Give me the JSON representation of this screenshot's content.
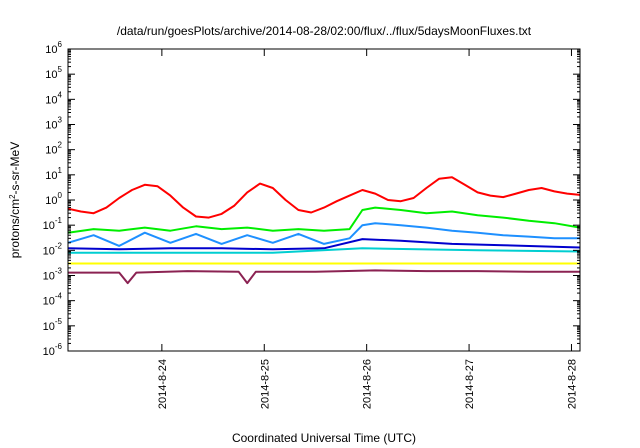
{
  "chart_data": {
    "type": "line",
    "title": "/data/run/goesPlots/archive/2014-08-28/02:00/flux/../flux/5daysMoonFluxes.txt",
    "xlabel": "Coordinated Universal Time (UTC)",
    "ylabel": {
      "prefix": "protons/cm",
      "superscript": "2",
      "suffix": "-s-sr-MeV"
    },
    "y_scale": "log",
    "ylim": [
      1e-06,
      1000000.0
    ],
    "y_ticks": [
      {
        "value": 1e-06,
        "base": "10",
        "exp": "-6"
      },
      {
        "value": 1e-05,
        "base": "10",
        "exp": "-5"
      },
      {
        "value": 0.0001,
        "base": "10",
        "exp": "-4"
      },
      {
        "value": 0.001,
        "base": "10",
        "exp": "-3"
      },
      {
        "value": 0.01,
        "base": "10",
        "exp": "-2"
      },
      {
        "value": 0.1,
        "base": "10",
        "exp": "-1"
      },
      {
        "value": 1,
        "base": "10",
        "exp": "0"
      },
      {
        "value": 10.0,
        "base": "10",
        "exp": "1"
      },
      {
        "value": 100.0,
        "base": "10",
        "exp": "2"
      },
      {
        "value": 1000.0,
        "base": "10",
        "exp": "3"
      },
      {
        "value": 10000.0,
        "base": "10",
        "exp": "4"
      },
      {
        "value": 100000.0,
        "base": "10",
        "exp": "5"
      },
      {
        "value": 1000000.0,
        "base": "10",
        "exp": "6"
      }
    ],
    "xlim": [
      "2014-08-23 02:00",
      "2014-08-28 02:00"
    ],
    "x_ticks": [
      "2014-8-24",
      "2014-8-25",
      "2014-8-26",
      "2014-8-27",
      "2014-8-28"
    ],
    "legend": "none",
    "grid": false,
    "series": [
      {
        "color": "#ff0000",
        "points": [
          [
            "2014-08-23 02:00",
            0.45
          ],
          [
            "2014-08-23 05:00",
            0.35
          ],
          [
            "2014-08-23 08:00",
            0.3
          ],
          [
            "2014-08-23 11:00",
            0.5
          ],
          [
            "2014-08-23 14:00",
            1.2
          ],
          [
            "2014-08-23 17:00",
            2.5
          ],
          [
            "2014-08-23 20:00",
            4.0
          ],
          [
            "2014-08-23 23:00",
            3.5
          ],
          [
            "2014-08-24 02:00",
            1.5
          ],
          [
            "2014-08-24 05:00",
            0.5
          ],
          [
            "2014-08-24 08:00",
            0.22
          ],
          [
            "2014-08-24 11:00",
            0.2
          ],
          [
            "2014-08-24 14:00",
            0.28
          ],
          [
            "2014-08-24 17:00",
            0.6
          ],
          [
            "2014-08-24 20:00",
            2.0
          ],
          [
            "2014-08-24 23:00",
            4.5
          ],
          [
            "2014-08-25 02:00",
            3.0
          ],
          [
            "2014-08-25 05:00",
            1.0
          ],
          [
            "2014-08-25 08:00",
            0.4
          ],
          [
            "2014-08-25 11:00",
            0.32
          ],
          [
            "2014-08-25 14:00",
            0.5
          ],
          [
            "2014-08-25 17:00",
            0.9
          ],
          [
            "2014-08-25 20:00",
            1.5
          ],
          [
            "2014-08-25 23:00",
            2.5
          ],
          [
            "2014-08-26 02:00",
            1.8
          ],
          [
            "2014-08-26 05:00",
            1.0
          ],
          [
            "2014-08-26 08:00",
            0.9
          ],
          [
            "2014-08-26 11:00",
            1.2
          ],
          [
            "2014-08-26 14:00",
            3.0
          ],
          [
            "2014-08-26 17:00",
            7.0
          ],
          [
            "2014-08-26 20:00",
            8.0
          ],
          [
            "2014-08-26 23:00",
            4.0
          ],
          [
            "2014-08-27 02:00",
            2.0
          ],
          [
            "2014-08-27 05:00",
            1.5
          ],
          [
            "2014-08-27 08:00",
            1.3
          ],
          [
            "2014-08-27 11:00",
            1.8
          ],
          [
            "2014-08-27 14:00",
            2.5
          ],
          [
            "2014-08-27 17:00",
            3.0
          ],
          [
            "2014-08-27 20:00",
            2.2
          ],
          [
            "2014-08-27 23:00",
            1.8
          ],
          [
            "2014-08-28 02:00",
            1.6
          ]
        ]
      },
      {
        "color": "#00ee00",
        "points": [
          [
            "2014-08-23 02:00",
            0.05
          ],
          [
            "2014-08-23 08:00",
            0.07
          ],
          [
            "2014-08-23 14:00",
            0.06
          ],
          [
            "2014-08-23 20:00",
            0.08
          ],
          [
            "2014-08-24 02:00",
            0.06
          ],
          [
            "2014-08-24 08:00",
            0.09
          ],
          [
            "2014-08-24 14:00",
            0.07
          ],
          [
            "2014-08-24 20:00",
            0.08
          ],
          [
            "2014-08-25 02:00",
            0.06
          ],
          [
            "2014-08-25 08:00",
            0.07
          ],
          [
            "2014-08-25 14:00",
            0.06
          ],
          [
            "2014-08-25 20:00",
            0.07
          ],
          [
            "2014-08-25 23:00",
            0.4
          ],
          [
            "2014-08-26 02:00",
            0.5
          ],
          [
            "2014-08-26 08:00",
            0.4
          ],
          [
            "2014-08-26 14:00",
            0.3
          ],
          [
            "2014-08-26 20:00",
            0.35
          ],
          [
            "2014-08-27 02:00",
            0.25
          ],
          [
            "2014-08-27 08:00",
            0.2
          ],
          [
            "2014-08-27 14:00",
            0.15
          ],
          [
            "2014-08-27 20:00",
            0.12
          ],
          [
            "2014-08-28 02:00",
            0.08
          ]
        ]
      },
      {
        "color": "#1e90ff",
        "points": [
          [
            "2014-08-23 02:00",
            0.02
          ],
          [
            "2014-08-23 08:00",
            0.04
          ],
          [
            "2014-08-23 14:00",
            0.015
          ],
          [
            "2014-08-23 20:00",
            0.05
          ],
          [
            "2014-08-24 02:00",
            0.02
          ],
          [
            "2014-08-24 08:00",
            0.045
          ],
          [
            "2014-08-24 14:00",
            0.018
          ],
          [
            "2014-08-24 20:00",
            0.04
          ],
          [
            "2014-08-25 02:00",
            0.02
          ],
          [
            "2014-08-25 08:00",
            0.045
          ],
          [
            "2014-08-25 14:00",
            0.018
          ],
          [
            "2014-08-25 20:00",
            0.03
          ],
          [
            "2014-08-25 23:00",
            0.1
          ],
          [
            "2014-08-26 02:00",
            0.12
          ],
          [
            "2014-08-26 08:00",
            0.1
          ],
          [
            "2014-08-26 14:00",
            0.08
          ],
          [
            "2014-08-26 20:00",
            0.06
          ],
          [
            "2014-08-27 02:00",
            0.05
          ],
          [
            "2014-08-27 08:00",
            0.04
          ],
          [
            "2014-08-27 14:00",
            0.035
          ],
          [
            "2014-08-27 20:00",
            0.03
          ],
          [
            "2014-08-28 02:00",
            0.03
          ]
        ]
      },
      {
        "color": "#0000cd",
        "points": [
          [
            "2014-08-23 02:00",
            0.012
          ],
          [
            "2014-08-23 14:00",
            0.011
          ],
          [
            "2014-08-24 02:00",
            0.012
          ],
          [
            "2014-08-24 14:00",
            0.012
          ],
          [
            "2014-08-25 02:00",
            0.011
          ],
          [
            "2014-08-25 14:00",
            0.012
          ],
          [
            "2014-08-25 23:00",
            0.028
          ],
          [
            "2014-08-26 08:00",
            0.024
          ],
          [
            "2014-08-26 20:00",
            0.018
          ],
          [
            "2014-08-27 08:00",
            0.016
          ],
          [
            "2014-08-27 20:00",
            0.014
          ],
          [
            "2014-08-28 02:00",
            0.013
          ]
        ]
      },
      {
        "color": "#00ced1",
        "points": [
          [
            "2014-08-23 02:00",
            0.008
          ],
          [
            "2014-08-24 02:00",
            0.008
          ],
          [
            "2014-08-25 02:00",
            0.008
          ],
          [
            "2014-08-25 23:00",
            0.012
          ],
          [
            "2014-08-26 12:00",
            0.011
          ],
          [
            "2014-08-27 02:00",
            0.01
          ],
          [
            "2014-08-28 02:00",
            0.009
          ]
        ]
      },
      {
        "color": "#ffff00",
        "points": [
          [
            "2014-08-23 02:00",
            0.003
          ],
          [
            "2014-08-24 02:00",
            0.003
          ],
          [
            "2014-08-25 02:00",
            0.003
          ],
          [
            "2014-08-26 02:00",
            0.003
          ],
          [
            "2014-08-27 02:00",
            0.003
          ],
          [
            "2014-08-28 02:00",
            0.003
          ]
        ]
      },
      {
        "color": "#8b2252",
        "points": [
          [
            "2014-08-23 02:00",
            0.0013
          ],
          [
            "2014-08-23 14:00",
            0.0013
          ],
          [
            "2014-08-23 16:00",
            0.0005
          ],
          [
            "2014-08-23 18:00",
            0.0013
          ],
          [
            "2014-08-24 06:00",
            0.0015
          ],
          [
            "2014-08-24 18:00",
            0.0014
          ],
          [
            "2014-08-24 20:00",
            0.0005
          ],
          [
            "2014-08-24 22:00",
            0.0014
          ],
          [
            "2014-08-25 12:00",
            0.0014
          ],
          [
            "2014-08-26 02:00",
            0.0016
          ],
          [
            "2014-08-26 14:00",
            0.0015
          ],
          [
            "2014-08-27 02:00",
            0.0015
          ],
          [
            "2014-08-27 14:00",
            0.0014
          ],
          [
            "2014-08-28 02:00",
            0.0014
          ]
        ]
      }
    ]
  }
}
